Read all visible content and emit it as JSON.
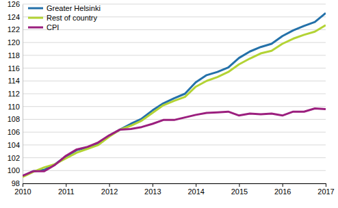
{
  "chart_data": {
    "type": "line",
    "x": [
      2010,
      2010.25,
      2010.5,
      2010.75,
      2011,
      2011.25,
      2011.5,
      2011.75,
      2012,
      2012.25,
      2012.5,
      2012.75,
      2013,
      2013.25,
      2013.5,
      2013.75,
      2014,
      2014.25,
      2014.5,
      2014.75,
      2015,
      2015.25,
      2015.5,
      2015.75,
      2016,
      2016.25,
      2016.5,
      2016.75,
      2017
    ],
    "series": [
      {
        "name": "Greater Helsinki",
        "color": "#2471a9",
        "values": [
          99.1,
          99.9,
          100.1,
          101.0,
          102.2,
          103.2,
          103.6,
          104.2,
          105.4,
          106.4,
          107.3,
          108.1,
          109.4,
          110.5,
          111.3,
          112.0,
          113.8,
          114.9,
          115.4,
          116.1,
          117.6,
          118.6,
          119.3,
          119.8,
          121.0,
          121.9,
          122.6,
          123.2,
          124.6
        ]
      },
      {
        "name": "Rest of country",
        "color": "#b3d334",
        "values": [
          99.0,
          99.8,
          100.5,
          101.0,
          101.9,
          102.8,
          103.4,
          104.0,
          105.3,
          106.4,
          107.0,
          107.8,
          109.0,
          110.2,
          110.9,
          111.5,
          113.1,
          114.0,
          114.6,
          115.4,
          116.6,
          117.5,
          118.3,
          118.7,
          119.8,
          120.6,
          121.2,
          121.7,
          122.7
        ]
      },
      {
        "name": "CPI",
        "color": "#9b1f7e",
        "values": [
          99.2,
          99.9,
          99.9,
          100.9,
          102.3,
          103.3,
          103.7,
          104.4,
          105.5,
          106.4,
          106.5,
          106.8,
          107.3,
          107.9,
          107.9,
          108.3,
          108.7,
          109.0,
          109.1,
          109.2,
          108.6,
          108.9,
          108.8,
          108.9,
          108.6,
          109.2,
          109.2,
          109.7,
          109.6
        ]
      }
    ],
    "xlim": [
      2010,
      2017
    ],
    "xticks": [
      2010,
      2011,
      2012,
      2013,
      2014,
      2015,
      2016,
      2017
    ],
    "ylim": [
      98,
      126
    ],
    "yticks": [
      98,
      100,
      102,
      104,
      106,
      108,
      110,
      112,
      114,
      116,
      118,
      120,
      122,
      124,
      126
    ],
    "grid": true,
    "legend": "top-left"
  }
}
